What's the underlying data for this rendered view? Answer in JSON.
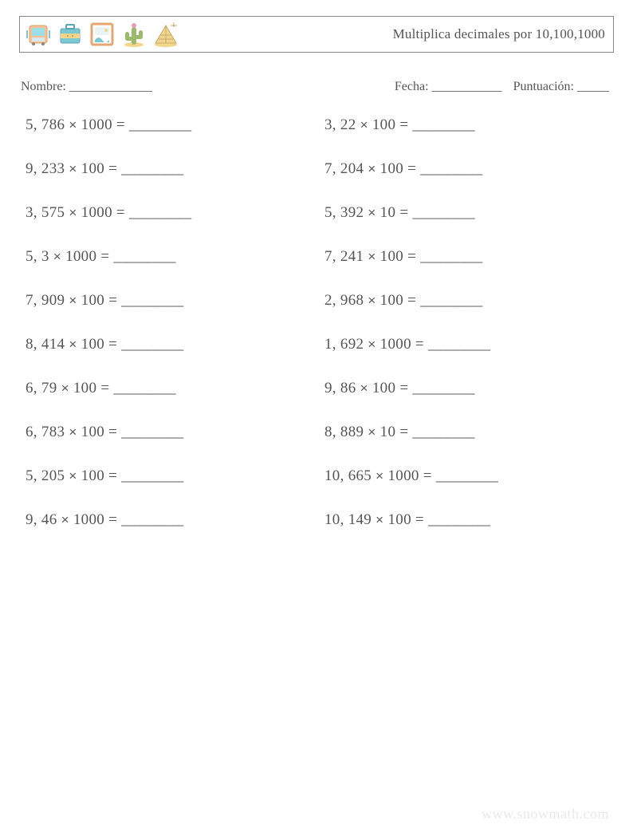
{
  "header": {
    "title": "Multiplica decimales por 10,100,1000",
    "icons": [
      {
        "name": "tram-icon"
      },
      {
        "name": "suitcase-icon"
      },
      {
        "name": "painting-icon"
      },
      {
        "name": "cactus-icon"
      },
      {
        "name": "pyramid-icon"
      }
    ]
  },
  "meta": {
    "name_label": "Nombre: _____________",
    "date_label": "Fecha: ___________",
    "score_label": "Puntuación: _____"
  },
  "blank": "________",
  "colors": {
    "text": "#5a5a5a",
    "border": "#888888",
    "watermark": "#e9e9e9",
    "tram_body": "#f8c392",
    "tram_window": "#9bdfe8",
    "suitcase_body": "#7bc8d4",
    "suitcase_band": "#f3d68e",
    "painting_frame": "#e6a670",
    "painting_wave": "#7bc8d4",
    "cactus": "#9cba6a",
    "cactus_flower": "#e89cb8",
    "sand": "#f3d68e",
    "pyramid_fill": "#f3d68e",
    "pyramid_line": "#c9a968"
  },
  "problems_left": [
    {
      "a": "5, 786",
      "b": "1000"
    },
    {
      "a": "9, 233",
      "b": "100"
    },
    {
      "a": "3, 575",
      "b": "1000"
    },
    {
      "a": "5, 3",
      "b": "1000"
    },
    {
      "a": "7, 909",
      "b": "100"
    },
    {
      "a": "8, 414",
      "b": "100"
    },
    {
      "a": "6, 79",
      "b": "100"
    },
    {
      "a": "6, 783",
      "b": "100"
    },
    {
      "a": "5, 205",
      "b": "100"
    },
    {
      "a": "9, 46",
      "b": "1000"
    }
  ],
  "problems_right": [
    {
      "a": "3, 22",
      "b": "100"
    },
    {
      "a": "7, 204",
      "b": "100"
    },
    {
      "a": "5, 392",
      "b": "10"
    },
    {
      "a": "7, 241",
      "b": "100"
    },
    {
      "a": "2, 968",
      "b": "100"
    },
    {
      "a": "1, 692",
      "b": "1000"
    },
    {
      "a": "9, 86",
      "b": "100"
    },
    {
      "a": "8, 889",
      "b": "10"
    },
    {
      "a": "10, 665",
      "b": "1000"
    },
    {
      "a": "10, 149",
      "b": "100"
    }
  ],
  "watermark": "www.snowmath.com"
}
